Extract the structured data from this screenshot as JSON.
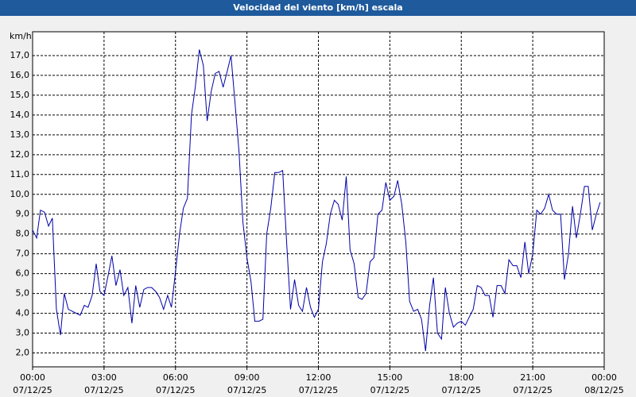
{
  "chart_data": {
    "type": "line",
    "title": "Velocidad del viento [km/h] escala",
    "y_label": "km/h",
    "x": [
      0,
      0.17,
      0.33,
      0.5,
      0.67,
      0.83,
      1,
      1.17,
      1.33,
      1.5,
      1.67,
      1.83,
      2,
      2.17,
      2.33,
      2.5,
      2.67,
      2.83,
      3,
      3.17,
      3.33,
      3.5,
      3.67,
      3.83,
      4,
      4.17,
      4.33,
      4.5,
      4.67,
      4.83,
      5,
      5.17,
      5.33,
      5.5,
      5.67,
      5.83,
      6,
      6.17,
      6.33,
      6.5,
      6.67,
      6.83,
      7,
      7.17,
      7.33,
      7.5,
      7.67,
      7.83,
      8,
      8.17,
      8.33,
      8.5,
      8.67,
      8.83,
      9,
      9.17,
      9.33,
      9.5,
      9.67,
      9.83,
      10,
      10.17,
      10.33,
      10.5,
      10.67,
      10.83,
      11,
      11.17,
      11.33,
      11.5,
      11.67,
      11.83,
      12,
      12.17,
      12.33,
      12.5,
      12.67,
      12.83,
      13,
      13.17,
      13.33,
      13.5,
      13.67,
      13.83,
      14,
      14.17,
      14.33,
      14.5,
      14.67,
      14.83,
      15,
      15.17,
      15.33,
      15.5,
      15.67,
      15.83,
      16,
      16.17,
      16.33,
      16.5,
      16.67,
      16.83,
      17,
      17.17,
      17.33,
      17.5,
      17.67,
      17.83,
      18,
      18.17,
      18.33,
      18.5,
      18.67,
      18.83,
      19,
      19.17,
      19.33,
      19.5,
      19.67,
      19.83,
      20,
      20.17,
      20.33,
      20.5,
      20.67,
      20.83,
      21,
      21.17,
      21.33,
      21.5,
      21.67,
      21.83,
      22,
      22.17,
      22.33,
      22.5,
      22.67,
      22.83,
      23,
      23.17,
      23.33,
      23.5,
      23.67,
      23.83
    ],
    "series": [
      {
        "name": "Velocidad del viento",
        "color": "#0000a8",
        "values": [
          8.2,
          7.8,
          9.2,
          9.1,
          8.4,
          8.8,
          4.2,
          2.9,
          5.0,
          4.2,
          4.1,
          4.0,
          3.9,
          4.4,
          4.3,
          4.9,
          6.5,
          5.1,
          4.9,
          5.9,
          6.9,
          5.4,
          6.2,
          4.9,
          5.3,
          3.5,
          5.4,
          4.3,
          5.2,
          5.3,
          5.3,
          5.1,
          4.8,
          4.2,
          4.9,
          4.3,
          6.1,
          8.0,
          9.3,
          9.8,
          14.0,
          15.4,
          17.3,
          16.5,
          13.7,
          15.2,
          16.1,
          16.2,
          15.4,
          16.2,
          17.0,
          14.6,
          12.1,
          8.6,
          6.8,
          5.6,
          3.6,
          3.6,
          3.7,
          8.0,
          9.3,
          11.1,
          11.1,
          11.2,
          7.5,
          4.2,
          5.7,
          4.4,
          4.1,
          5.3,
          4.3,
          3.8,
          4.2,
          6.6,
          7.5,
          9.0,
          9.7,
          9.5,
          8.7,
          10.9,
          7.2,
          6.5,
          4.8,
          4.7,
          5.0,
          6.6,
          6.8,
          9.0,
          9.2,
          10.6,
          9.7,
          9.9,
          10.7,
          9.5,
          7.6,
          4.6,
          4.1,
          4.2,
          3.7,
          2.1,
          4.4,
          5.8,
          3.0,
          2.7,
          5.3,
          4.0,
          3.3,
          3.5,
          3.6,
          3.4,
          3.8,
          4.2,
          5.4,
          5.3,
          4.9,
          4.9,
          3.8,
          5.4,
          5.4,
          5.0,
          6.7,
          6.4,
          6.4,
          5.8,
          7.6,
          6.0,
          7.0,
          9.2,
          9.0,
          9.3,
          10.0,
          9.2,
          9.0,
          9.0,
          5.7,
          7.0,
          9.4,
          7.8,
          9.0,
          10.4,
          10.4,
          8.2,
          9.0,
          9.6
        ]
      }
    ],
    "xlim": [
      0,
      24
    ],
    "xticks": [
      {
        "value": 0,
        "label": "00:00\n07/12/25"
      },
      {
        "value": 3,
        "label": "03:00\n07/12/25"
      },
      {
        "value": 6,
        "label": "06:00\n07/12/25"
      },
      {
        "value": 9,
        "label": "09:00\n07/12/25"
      },
      {
        "value": 12,
        "label": "12:00\n07/12/25"
      },
      {
        "value": 15,
        "label": "15:00\n07/12/25"
      },
      {
        "value": 18,
        "label": "18:00\n07/12/25"
      },
      {
        "value": 21,
        "label": "21:00\n07/12/25"
      },
      {
        "value": 24,
        "label": "00:00\n08/12/25"
      }
    ],
    "ylim": [
      1.3,
      18.2
    ],
    "yticks": [
      {
        "value": 2,
        "label": "2,0"
      },
      {
        "value": 3,
        "label": "3,0"
      },
      {
        "value": 4,
        "label": "4,0"
      },
      {
        "value": 5,
        "label": "5,0"
      },
      {
        "value": 6,
        "label": "6,0"
      },
      {
        "value": 7,
        "label": "7,0"
      },
      {
        "value": 8,
        "label": "8,0"
      },
      {
        "value": 9,
        "label": "9,0"
      },
      {
        "value": 10,
        "label": "10,0"
      },
      {
        "value": 11,
        "label": "11,0"
      },
      {
        "value": 12,
        "label": "12,0"
      },
      {
        "value": 13,
        "label": "13,0"
      },
      {
        "value": 14,
        "label": "14,0"
      },
      {
        "value": 15,
        "label": "15,0"
      },
      {
        "value": 16,
        "label": "16,0"
      },
      {
        "value": 17,
        "label": "17,0"
      }
    ],
    "grid": true
  }
}
